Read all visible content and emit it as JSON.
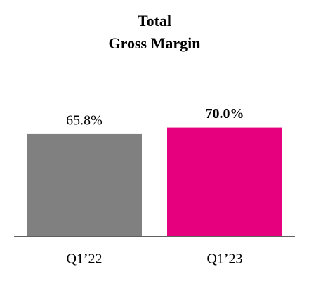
{
  "chart_data": {
    "type": "bar",
    "title": [
      "Total",
      "Gross Margin"
    ],
    "categories": [
      "Q1’22",
      "Q1’23"
    ],
    "values": [
      65.8,
      70.0
    ],
    "value_labels": [
      "65.8%",
      "70.0%"
    ],
    "colors": [
      "#808080",
      "#e6007e"
    ],
    "value_label_weights": [
      "normal",
      "bold"
    ]
  }
}
